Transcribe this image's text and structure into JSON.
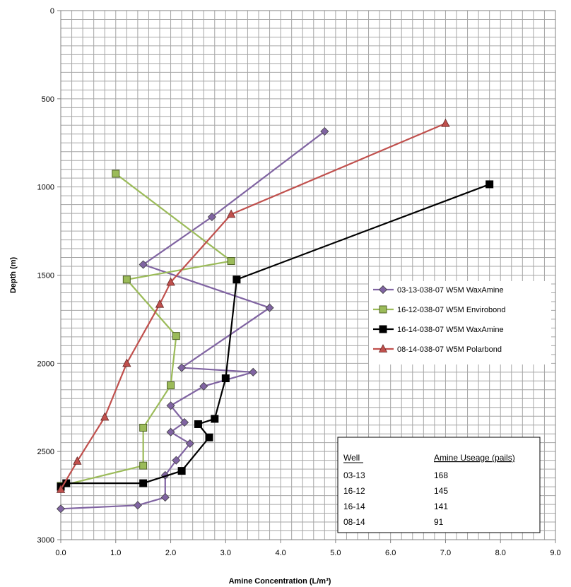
{
  "chart_data": {
    "type": "line",
    "xlabel": "Amine Concentration (L/m³)",
    "ylabel": "Depth (m)",
    "xlim": [
      0,
      9
    ],
    "ylim": [
      0,
      3000
    ],
    "y_reversed": true,
    "x_ticks": [
      "0.0",
      "1.0",
      "2.0",
      "3.0",
      "4.0",
      "5.0",
      "6.0",
      "7.0",
      "8.0",
      "9.0"
    ],
    "y_ticks": [
      "0",
      "500",
      "1000",
      "1500",
      "2000",
      "2500",
      "3000"
    ],
    "grid": true,
    "legend_position": "right",
    "series": [
      {
        "name": "03-13-038-07 W5M WaxAmine",
        "color": "#8064a2",
        "marker": "diamond",
        "points": [
          [
            4.8,
            685
          ],
          [
            2.75,
            1170
          ],
          [
            1.5,
            1440
          ],
          [
            3.8,
            1685
          ],
          [
            2.2,
            2025
          ],
          [
            3.5,
            2050
          ],
          [
            2.6,
            2130
          ],
          [
            2.0,
            2240
          ],
          [
            2.25,
            2335
          ],
          [
            2.0,
            2390
          ],
          [
            2.35,
            2455
          ],
          [
            2.1,
            2550
          ],
          [
            1.9,
            2635
          ],
          [
            1.9,
            2760
          ],
          [
            1.4,
            2805
          ],
          [
            0.0,
            2825
          ]
        ]
      },
      {
        "name": "16-12-038-07 W5M Envirobond",
        "color": "#9bbb59",
        "marker": "square",
        "points": [
          [
            1.0,
            925
          ],
          [
            3.1,
            1420
          ],
          [
            1.2,
            1525
          ],
          [
            2.1,
            1845
          ],
          [
            2.0,
            2125
          ],
          [
            1.5,
            2365
          ],
          [
            1.5,
            2580
          ],
          [
            0.0,
            2695
          ]
        ]
      },
      {
        "name": "16-14-038-07 W5M WaxAmine",
        "color": "#000000",
        "marker": "square",
        "points": [
          [
            7.8,
            985
          ],
          [
            3.2,
            1525
          ],
          [
            3.0,
            2085
          ],
          [
            2.8,
            2315
          ],
          [
            2.5,
            2345
          ],
          [
            2.7,
            2420
          ],
          [
            2.2,
            2610
          ],
          [
            1.5,
            2680
          ],
          [
            0.1,
            2680
          ],
          [
            0.0,
            2700
          ]
        ]
      },
      {
        "name": "08-14-038-07 W5M Polarbond",
        "color": "#c0504d",
        "marker": "triangle",
        "points": [
          [
            7.0,
            640
          ],
          [
            3.1,
            1155
          ],
          [
            2.0,
            1540
          ],
          [
            1.8,
            1665
          ],
          [
            1.2,
            2000
          ],
          [
            0.8,
            2305
          ],
          [
            0.3,
            2555
          ],
          [
            0.0,
            2715
          ]
        ]
      }
    ],
    "table": {
      "headers": [
        "Well",
        "Amine Useage (pails)"
      ],
      "rows": [
        [
          "03-13",
          "168"
        ],
        [
          "16-12",
          "145"
        ],
        [
          "16-14",
          "141"
        ],
        [
          "08-14",
          "91"
        ]
      ]
    }
  }
}
